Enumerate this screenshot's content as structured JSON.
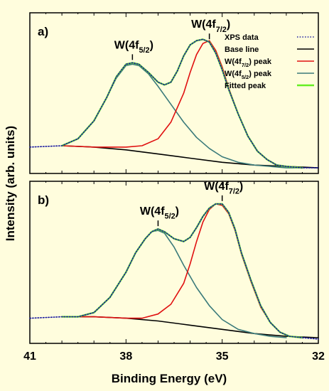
{
  "chart_data": [
    {
      "type": "line",
      "panel_label": "a)",
      "xlabel": "Binding Energy (eV)",
      "ylabel": "Intensity (arb. units)",
      "xlim": [
        41,
        32
      ],
      "x_reversed": true,
      "xticks": [
        41,
        38,
        35,
        32
      ],
      "ylim": [
        0,
        1
      ],
      "grid": false,
      "legend": {
        "position": "top-right",
        "entries": [
          {
            "name": "XPS data",
            "style": "dotted",
            "color": "#1a1aa0"
          },
          {
            "name": "Base line",
            "style": "solid",
            "color": "#000000"
          },
          {
            "name": "W(4f7/2) peak",
            "base": "W(4f",
            "sub": "7/2",
            "tail": ") peak",
            "style": "solid",
            "color": "#e01010"
          },
          {
            "name": "W(4f5/2) peak",
            "base": "W(4f",
            "sub": "5/2",
            "tail": ") peak",
            "style": "solid",
            "color": "#3a7a7a"
          },
          {
            "name": "Fitted peak",
            "style": "solid",
            "color": "#66ee22"
          }
        ]
      },
      "annotations": [
        {
          "base": "W(4f",
          "sub": "5/2",
          "tail": ")",
          "x": 37.8
        },
        {
          "base": "W(4f",
          "sub": "7/2",
          "tail": ")",
          "x": 35.4
        }
      ],
      "series": [
        {
          "name": "XPS data",
          "color": "#1a1aa0",
          "style": "dotted",
          "x": [
            41,
            40.0,
            39.5,
            39.0,
            38.6,
            38.3,
            38.0,
            37.8,
            37.6,
            37.3,
            37.0,
            36.8,
            36.6,
            36.4,
            36.2,
            36.0,
            35.8,
            35.6,
            35.4,
            35.2,
            35.0,
            34.8,
            34.5,
            34.2,
            33.9,
            33.6,
            33.3,
            33.0,
            32.5,
            32.0
          ],
          "y": [
            0.16,
            0.17,
            0.22,
            0.35,
            0.52,
            0.67,
            0.76,
            0.77,
            0.76,
            0.7,
            0.63,
            0.61,
            0.63,
            0.71,
            0.82,
            0.9,
            0.93,
            0.94,
            0.92,
            0.84,
            0.72,
            0.58,
            0.4,
            0.24,
            0.13,
            0.07,
            0.03,
            0.02,
            0.01,
            0.01
          ]
        },
        {
          "name": "Base line",
          "color": "#000000",
          "style": "solid",
          "x": [
            40.0,
            39.0,
            38.0,
            37.0,
            36.0,
            35.0,
            34.0,
            33.0,
            32.0
          ],
          "y": [
            0.17,
            0.16,
            0.14,
            0.11,
            0.08,
            0.05,
            0.03,
            0.02,
            0.01
          ]
        },
        {
          "name": "W(4f5/2) peak",
          "color": "#3a7a7a",
          "style": "solid",
          "x": [
            40.0,
            39.5,
            39.0,
            38.6,
            38.3,
            38.0,
            37.8,
            37.6,
            37.3,
            37.0,
            36.6,
            36.2,
            35.8,
            35.4,
            35.0,
            34.5,
            34.0,
            33.5,
            33.0,
            32.5
          ],
          "y": [
            0.17,
            0.22,
            0.35,
            0.52,
            0.66,
            0.75,
            0.76,
            0.75,
            0.69,
            0.6,
            0.47,
            0.34,
            0.23,
            0.15,
            0.09,
            0.05,
            0.03,
            0.02,
            0.01,
            0.01
          ]
        },
        {
          "name": "W(4f7/2) peak",
          "color": "#e01010",
          "style": "solid",
          "x": [
            40.0,
            39.0,
            38.0,
            37.5,
            37.0,
            36.6,
            36.2,
            36.0,
            35.8,
            35.6,
            35.4,
            35.2,
            35.0,
            34.8,
            34.5,
            34.2,
            33.9,
            33.6,
            33.3,
            33.0,
            32.5
          ],
          "y": [
            0.17,
            0.16,
            0.16,
            0.17,
            0.22,
            0.34,
            0.55,
            0.7,
            0.83,
            0.91,
            0.93,
            0.86,
            0.74,
            0.59,
            0.4,
            0.24,
            0.13,
            0.07,
            0.03,
            0.02,
            0.01
          ]
        },
        {
          "name": "Fitted peak",
          "color": "#66ee22",
          "style": "solid",
          "x": [
            40.0,
            39.5,
            39.0,
            38.6,
            38.3,
            38.0,
            37.8,
            37.6,
            37.3,
            37.0,
            36.8,
            36.6,
            36.4,
            36.2,
            36.0,
            35.8,
            35.6,
            35.4,
            35.2,
            35.0,
            34.8,
            34.5,
            34.2,
            33.9,
            33.6,
            33.3,
            33.0,
            32.5
          ],
          "y": [
            0.17,
            0.22,
            0.35,
            0.52,
            0.67,
            0.76,
            0.77,
            0.76,
            0.7,
            0.63,
            0.61,
            0.63,
            0.71,
            0.82,
            0.9,
            0.93,
            0.94,
            0.92,
            0.84,
            0.72,
            0.58,
            0.4,
            0.24,
            0.13,
            0.07,
            0.03,
            0.02,
            0.01
          ]
        }
      ]
    },
    {
      "type": "line",
      "panel_label": "b)",
      "xlabel": "Binding Energy (eV)",
      "ylabel": "Intensity (arb. units)",
      "xlim": [
        41,
        32
      ],
      "x_reversed": true,
      "xticks": [
        41,
        38,
        35,
        32
      ],
      "ylim": [
        0,
        1
      ],
      "grid": false,
      "annotations": [
        {
          "base": "W(4f",
          "sub": "5/2",
          "tail": ")",
          "x": 37.0
        },
        {
          "base": "W(4f",
          "sub": "7/2",
          "tail": ")",
          "x": 35.0
        }
      ],
      "series": [
        {
          "name": "XPS data",
          "color": "#1a1aa0",
          "style": "dotted",
          "x": [
            41,
            40.0,
            39.5,
            39.0,
            38.5,
            38.0,
            37.7,
            37.4,
            37.2,
            37.0,
            36.8,
            36.5,
            36.2,
            36.0,
            35.8,
            35.6,
            35.4,
            35.2,
            35.0,
            34.8,
            34.6,
            34.4,
            34.1,
            33.8,
            33.5,
            33.2,
            32.9,
            32.5,
            32.0
          ],
          "y": [
            0.15,
            0.16,
            0.16,
            0.19,
            0.3,
            0.48,
            0.62,
            0.72,
            0.77,
            0.79,
            0.77,
            0.72,
            0.7,
            0.73,
            0.8,
            0.88,
            0.94,
            0.97,
            0.97,
            0.91,
            0.79,
            0.62,
            0.42,
            0.24,
            0.12,
            0.05,
            0.02,
            0.01,
            0.0
          ]
        },
        {
          "name": "Base line",
          "color": "#000000",
          "style": "solid",
          "x": [
            40.0,
            39.0,
            38.0,
            37.0,
            36.0,
            35.0,
            34.0,
            33.0,
            32.0
          ],
          "y": [
            0.16,
            0.16,
            0.15,
            0.13,
            0.1,
            0.07,
            0.04,
            0.02,
            0.01
          ]
        },
        {
          "name": "W(4f5/2) peak",
          "color": "#3a7a7a",
          "style": "solid",
          "x": [
            40.0,
            39.5,
            39.0,
            38.5,
            38.0,
            37.7,
            37.4,
            37.2,
            37.0,
            36.8,
            36.5,
            36.2,
            35.8,
            35.4,
            35.0,
            34.5,
            34.0,
            33.5,
            33.0
          ],
          "y": [
            0.16,
            0.16,
            0.19,
            0.3,
            0.48,
            0.62,
            0.72,
            0.77,
            0.78,
            0.76,
            0.66,
            0.53,
            0.37,
            0.24,
            0.14,
            0.07,
            0.04,
            0.02,
            0.01
          ]
        },
        {
          "name": "W(4f7/2) peak",
          "color": "#e01010",
          "style": "solid",
          "x": [
            40.0,
            39.0,
            38.0,
            37.5,
            37.0,
            36.6,
            36.2,
            36.0,
            35.8,
            35.6,
            35.4,
            35.2,
            35.0,
            34.8,
            34.6,
            34.4,
            34.1,
            33.8,
            33.5,
            33.2,
            32.9,
            32.5
          ],
          "y": [
            0.16,
            0.16,
            0.15,
            0.15,
            0.18,
            0.25,
            0.4,
            0.54,
            0.7,
            0.84,
            0.93,
            0.97,
            0.96,
            0.9,
            0.78,
            0.61,
            0.41,
            0.23,
            0.12,
            0.05,
            0.02,
            0.01
          ]
        },
        {
          "name": "Fitted peak",
          "color": "#66ee22",
          "style": "solid",
          "x": [
            40.0,
            39.5,
            39.0,
            38.5,
            38.0,
            37.7,
            37.4,
            37.2,
            37.0,
            36.8,
            36.5,
            36.2,
            36.0,
            35.8,
            35.6,
            35.4,
            35.2,
            35.0,
            34.8,
            34.6,
            34.4,
            34.1,
            33.8,
            33.5,
            33.2,
            32.9,
            32.5
          ],
          "y": [
            0.16,
            0.16,
            0.19,
            0.3,
            0.48,
            0.62,
            0.72,
            0.77,
            0.79,
            0.77,
            0.72,
            0.7,
            0.73,
            0.8,
            0.88,
            0.94,
            0.97,
            0.97,
            0.91,
            0.79,
            0.62,
            0.42,
            0.24,
            0.12,
            0.05,
            0.02,
            0.01
          ]
        }
      ]
    }
  ]
}
